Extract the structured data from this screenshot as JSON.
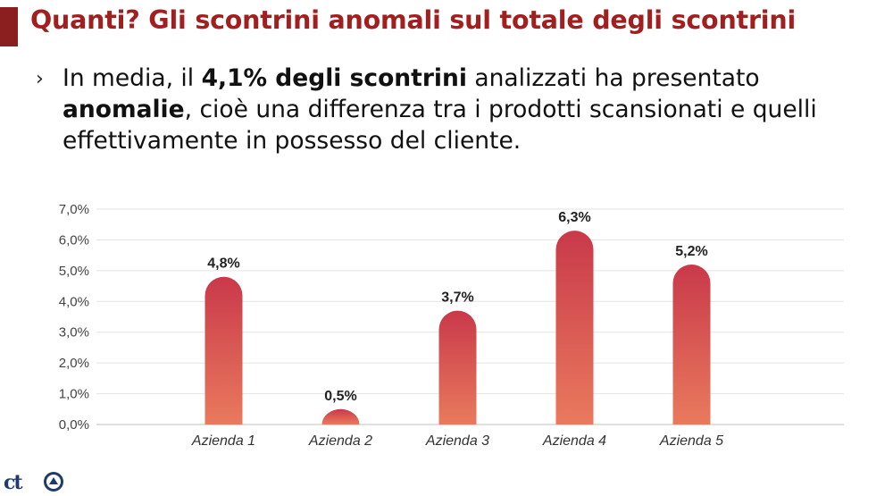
{
  "slide": {
    "title": "Quanti?  Gli scontrini anomali sul totale degli scontrini",
    "bullet": {
      "marker": "›",
      "text_1": "In media, il ",
      "bold_1": "4,1% degli scontrini",
      "text_2": " analizzati ha presentato ",
      "bold_2": "anomalie",
      "text_3": ", cioè una differenza tra i prodotti scansionati e quelli effettivamente in possesso del cliente."
    },
    "logo_text": "ct"
  },
  "chart_data": {
    "type": "bar",
    "title": "",
    "xlabel": "",
    "ylabel": "",
    "categories": [
      "Azienda 1",
      "Azienda 2",
      "Azienda 3",
      "Azienda 4",
      "Azienda 5"
    ],
    "values": [
      4.8,
      0.5,
      3.7,
      6.3,
      5.2
    ],
    "data_labels": [
      "4,8%",
      "0,5%",
      "3,7%",
      "6,3%",
      "5,2%"
    ],
    "ylim": [
      0,
      7
    ],
    "yticks": [
      0,
      1,
      2,
      3,
      4,
      5,
      6,
      7
    ],
    "ytick_labels": [
      "0,0%",
      "1,0%",
      "2,0%",
      "3,0%",
      "4,0%",
      "5,0%",
      "6,0%",
      "7,0%"
    ],
    "grid": true,
    "bar_color_top": "#c9394a",
    "bar_color_bottom": "#e97a5d"
  }
}
